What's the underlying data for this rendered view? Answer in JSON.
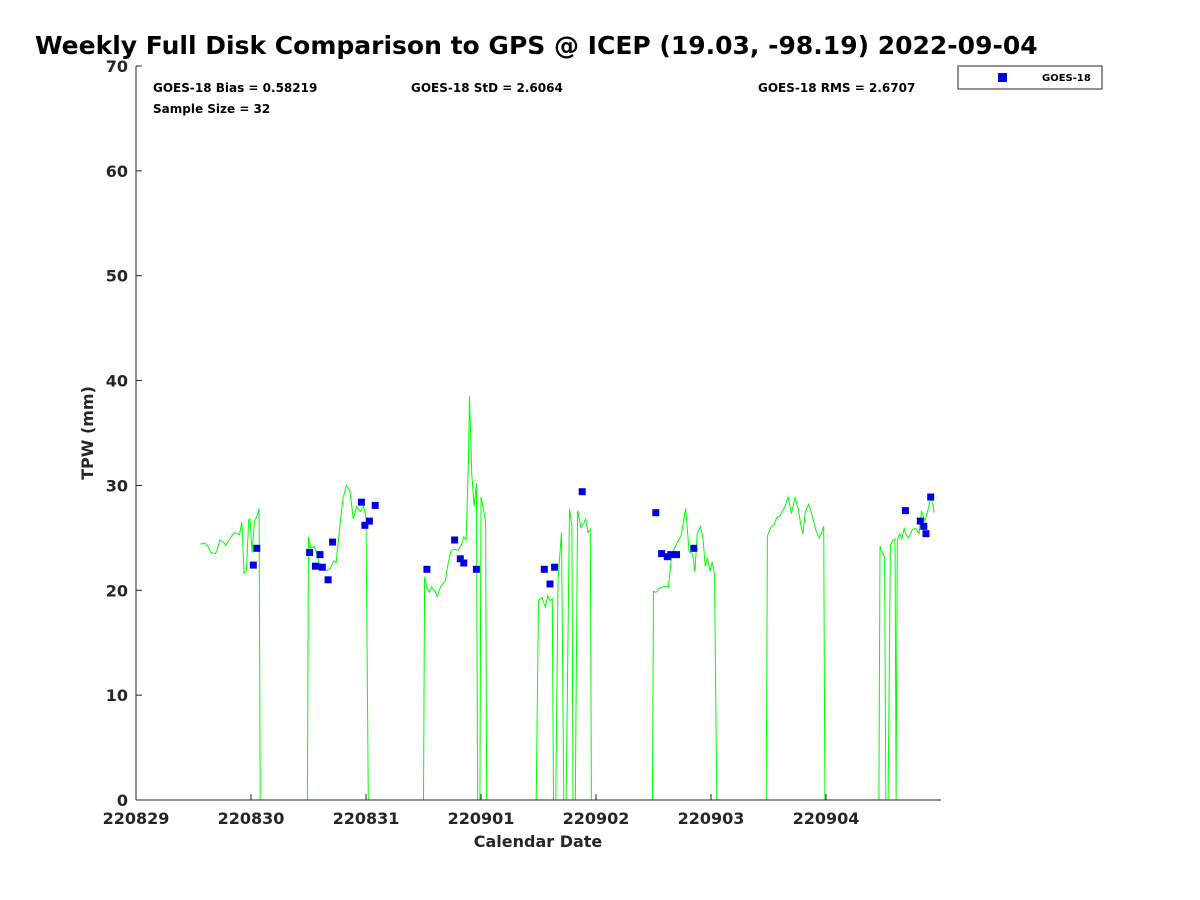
{
  "chart_data": {
    "type": "line",
    "title": "Weekly Full Disk Comparison to GPS @ ICEP (19.03, -98.19) 2022-09-04",
    "xlabel": "Calendar Date",
    "ylabel": "TPW (mm)",
    "xlim": [
      0,
      7
    ],
    "ylim": [
      0,
      70
    ],
    "x_ticks": [
      0,
      1,
      2,
      3,
      4,
      5,
      6
    ],
    "x_tick_labels": [
      "220829",
      "220830",
      "220831",
      "220901",
      "220902",
      "220903",
      "220904"
    ],
    "y_ticks": [
      0,
      10,
      20,
      30,
      40,
      50,
      60,
      70
    ],
    "y_tick_labels": [
      "0",
      "10",
      "20",
      "30",
      "40",
      "50",
      "60",
      "70"
    ],
    "grid": false,
    "legend": {
      "entries": [
        "GOES-18"
      ],
      "placement": "outside-top-right"
    },
    "stats": {
      "bias": "GOES-18 Bias = 0.58219",
      "std": "GOES-18 StD = 2.6064",
      "rms": "GOES-18 RMS = 2.6707",
      "sample": "Sample Size = 32"
    },
    "colors": {
      "gps_line": "#00ff00",
      "goes": "#0000dd"
    },
    "gps_segments": [
      [
        [
          0.56,
          24.4
        ],
        [
          0.6,
          24.5
        ],
        [
          0.62,
          24.3
        ],
        [
          0.65,
          23.6
        ],
        [
          0.69,
          23.5
        ],
        [
          0.71,
          24.0
        ],
        [
          0.73,
          24.8
        ],
        [
          0.76,
          24.6
        ],
        [
          0.78,
          24.3
        ],
        [
          0.81,
          24.8
        ],
        [
          0.84,
          25.3
        ],
        [
          0.86,
          25.5
        ],
        [
          0.9,
          25.3
        ],
        [
          0.92,
          26.5
        ],
        [
          0.94,
          21.6
        ],
        [
          0.96,
          21.9
        ],
        [
          0.98,
          26.7
        ],
        [
          0.99,
          26.8
        ],
        [
          1.01,
          23.6
        ],
        [
          1.03,
          26.7
        ],
        [
          1.05,
          27.0
        ],
        [
          1.07,
          27.8
        ],
        [
          1.08,
          0
        ]
      ],
      [
        [
          1.49,
          0
        ],
        [
          1.5,
          25.1
        ],
        [
          1.52,
          24.0
        ],
        [
          1.55,
          24.2
        ],
        [
          1.57,
          23.5
        ],
        [
          1.59,
          22.7
        ],
        [
          1.61,
          22.3
        ],
        [
          1.63,
          22.0
        ],
        [
          1.66,
          21.9
        ],
        [
          1.69,
          22.1
        ],
        [
          1.72,
          22.8
        ],
        [
          1.74,
          22.6
        ],
        [
          1.77,
          25.8
        ],
        [
          1.8,
          28.8
        ],
        [
          1.83,
          30.0
        ],
        [
          1.86,
          29.5
        ],
        [
          1.89,
          26.8
        ],
        [
          1.92,
          28.0
        ],
        [
          1.95,
          27.5
        ],
        [
          1.98,
          28.0
        ],
        [
          2.0,
          27.0
        ],
        [
          2.02,
          0
        ]
      ],
      [
        [
          2.5,
          0
        ],
        [
          2.51,
          21.3
        ],
        [
          2.53,
          20.3
        ],
        [
          2.55,
          19.8
        ],
        [
          2.57,
          20.3
        ],
        [
          2.6,
          19.9
        ],
        [
          2.62,
          19.4
        ],
        [
          2.65,
          20.4
        ],
        [
          2.69,
          20.9
        ],
        [
          2.71,
          22.3
        ],
        [
          2.74,
          23.8
        ],
        [
          2.77,
          23.9
        ],
        [
          2.8,
          23.8
        ],
        [
          2.83,
          24.3
        ],
        [
          2.85,
          25.1
        ],
        [
          2.87,
          24.8
        ],
        [
          2.89,
          32.0
        ],
        [
          2.9,
          38.5
        ],
        [
          2.92,
          31.0
        ],
        [
          2.94,
          28.0
        ],
        [
          2.96,
          30.2
        ],
        [
          2.97,
          0
        ],
        [
          2.99,
          0
        ],
        [
          3.0,
          28.9
        ],
        [
          3.02,
          27.8
        ],
        [
          3.04,
          26.6
        ],
        [
          3.05,
          0
        ]
      ],
      [
        [
          3.48,
          0
        ],
        [
          3.5,
          19.0
        ],
        [
          3.53,
          19.3
        ],
        [
          3.56,
          18.4
        ],
        [
          3.58,
          19.5
        ],
        [
          3.6,
          19.0
        ],
        [
          3.62,
          19.2
        ],
        [
          3.63,
          0
        ],
        [
          3.65,
          0
        ],
        [
          3.67,
          21.0
        ],
        [
          3.7,
          25.5
        ],
        [
          3.72,
          0
        ],
        [
          3.74,
          0
        ],
        [
          3.77,
          27.8
        ],
        [
          3.79,
          26.1
        ],
        [
          3.8,
          0
        ],
        [
          3.82,
          0
        ],
        [
          3.84,
          27.6
        ],
        [
          3.87,
          26.0
        ],
        [
          3.89,
          26.3
        ],
        [
          3.91,
          26.8
        ],
        [
          3.93,
          25.5
        ],
        [
          3.95,
          25.8
        ],
        [
          3.96,
          0
        ]
      ],
      [
        [
          4.49,
          0
        ],
        [
          4.5,
          19.9
        ],
        [
          4.52,
          19.8
        ],
        [
          4.55,
          20.2
        ],
        [
          4.6,
          20.4
        ],
        [
          4.63,
          20.3
        ],
        [
          4.66,
          23.5
        ],
        [
          4.7,
          24.4
        ],
        [
          4.74,
          25.2
        ],
        [
          4.78,
          27.8
        ],
        [
          4.81,
          23.7
        ],
        [
          4.84,
          23.5
        ],
        [
          4.86,
          21.8
        ],
        [
          4.88,
          25.4
        ],
        [
          4.91,
          26.1
        ],
        [
          4.93,
          24.9
        ],
        [
          4.95,
          22.3
        ],
        [
          4.97,
          23.1
        ],
        [
          4.99,
          21.8
        ],
        [
          5.01,
          22.7
        ],
        [
          5.03,
          21.6
        ],
        [
          5.05,
          0
        ]
      ],
      [
        [
          5.48,
          0
        ],
        [
          5.49,
          25.2
        ],
        [
          5.52,
          26.0
        ],
        [
          5.55,
          26.3
        ],
        [
          5.57,
          26.9
        ],
        [
          5.6,
          27.1
        ],
        [
          5.64,
          27.9
        ],
        [
          5.67,
          28.9
        ],
        [
          5.7,
          27.3
        ],
        [
          5.73,
          28.9
        ],
        [
          5.76,
          27.7
        ],
        [
          5.78,
          26.3
        ],
        [
          5.8,
          25.4
        ],
        [
          5.82,
          27.5
        ],
        [
          5.85,
          28.2
        ],
        [
          5.88,
          27.1
        ],
        [
          5.91,
          25.8
        ],
        [
          5.94,
          25.0
        ],
        [
          5.96,
          25.4
        ],
        [
          5.98,
          26.1
        ],
        [
          5.99,
          0
        ]
      ],
      [
        [
          6.46,
          0
        ],
        [
          6.47,
          24.2
        ],
        [
          6.49,
          23.6
        ],
        [
          6.51,
          23.1
        ],
        [
          6.52,
          0
        ],
        [
          6.54,
          0
        ],
        [
          6.56,
          24.3
        ],
        [
          6.58,
          24.7
        ],
        [
          6.6,
          24.9
        ],
        [
          6.61,
          0
        ],
        [
          6.62,
          24.8
        ],
        [
          6.64,
          25.4
        ],
        [
          6.66,
          24.9
        ],
        [
          6.68,
          25.9
        ],
        [
          6.7,
          25.2
        ],
        [
          6.72,
          25.0
        ],
        [
          6.75,
          25.8
        ],
        [
          6.78,
          25.9
        ],
        [
          6.81,
          25.4
        ],
        [
          6.83,
          27.6
        ],
        [
          6.86,
          26.6
        ],
        [
          6.89,
          27.8
        ],
        [
          6.91,
          28.9
        ],
        [
          6.93,
          28.2
        ],
        [
          6.94,
          27.4
        ]
      ]
    ],
    "series": [
      {
        "name": "GOES-18",
        "marker": "square",
        "points": [
          [
            1.02,
            22.4
          ],
          [
            1.05,
            24.0
          ],
          [
            1.51,
            23.6
          ],
          [
            1.56,
            22.3
          ],
          [
            1.6,
            23.4
          ],
          [
            1.62,
            22.2
          ],
          [
            1.67,
            21.0
          ],
          [
            1.71,
            24.6
          ],
          [
            1.96,
            28.4
          ],
          [
            1.99,
            26.2
          ],
          [
            2.03,
            26.6
          ],
          [
            2.08,
            28.1
          ],
          [
            2.53,
            22.0
          ],
          [
            2.77,
            24.8
          ],
          [
            2.82,
            23.0
          ],
          [
            2.85,
            22.6
          ],
          [
            2.96,
            22.0
          ],
          [
            3.55,
            22.0
          ],
          [
            3.6,
            20.6
          ],
          [
            3.64,
            22.2
          ],
          [
            3.88,
            29.4
          ],
          [
            4.52,
            27.4
          ],
          [
            4.57,
            23.5
          ],
          [
            4.62,
            23.2
          ],
          [
            4.65,
            23.4
          ],
          [
            4.7,
            23.4
          ],
          [
            4.85,
            24.0
          ],
          [
            6.69,
            27.6
          ],
          [
            6.82,
            26.6
          ],
          [
            6.85,
            26.1
          ],
          [
            6.87,
            25.4
          ],
          [
            6.91,
            28.9
          ]
        ]
      }
    ]
  }
}
